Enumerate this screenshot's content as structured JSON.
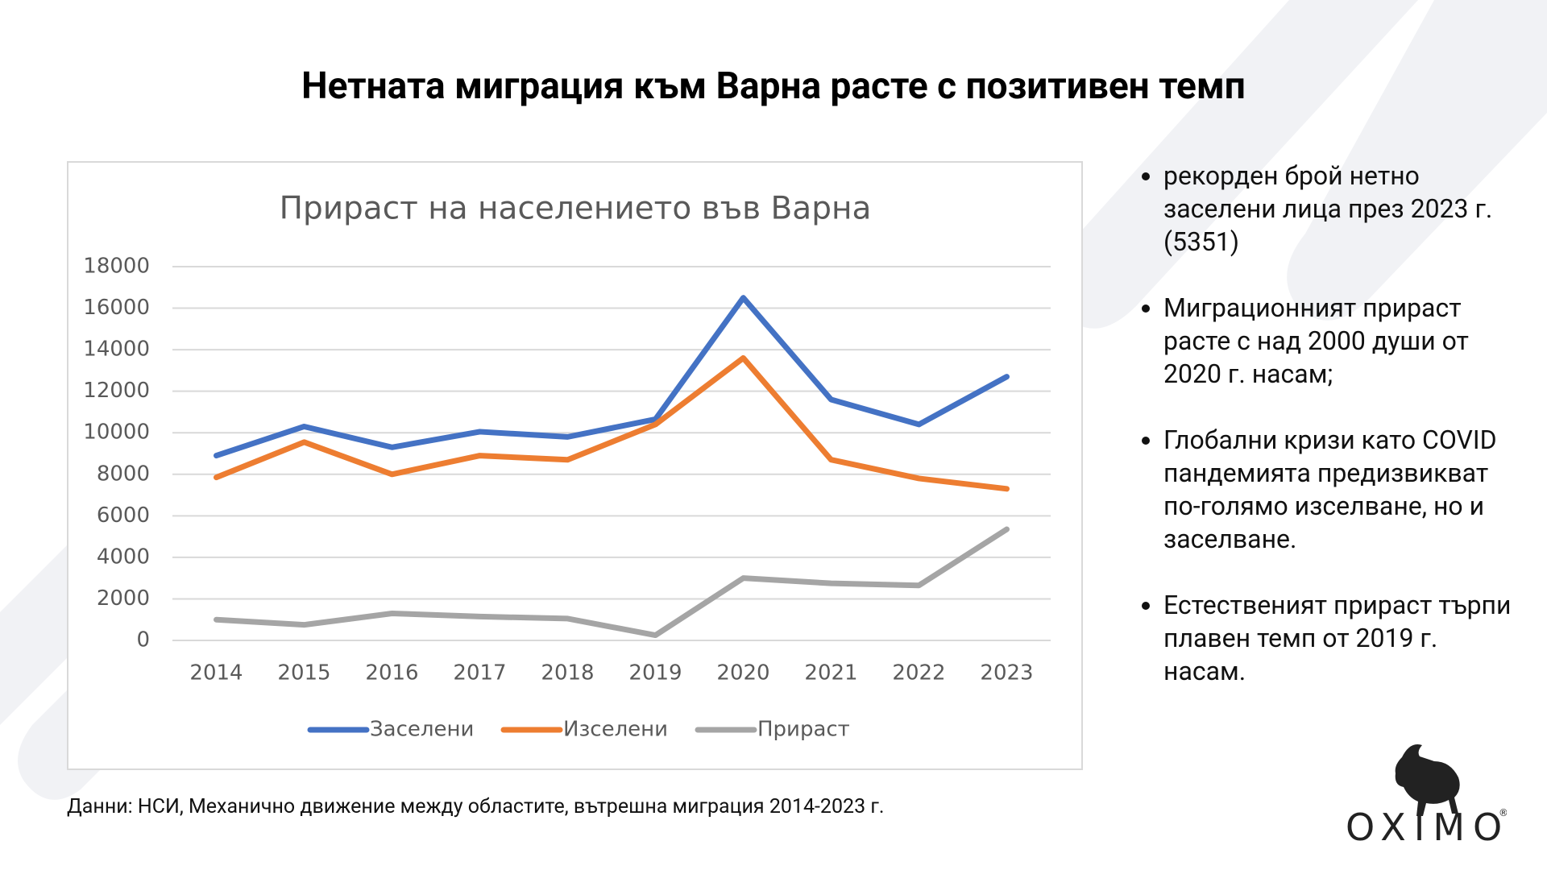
{
  "slide_title": "Нетната миграция към Варна расте с позитивен темп",
  "bullets": [
    "рекорден брой нетно заселени лица през 2023 г. (5351)",
    "Миграционният прираст расте с над 2000 души от 2020 г. насам;",
    "Глобални кризи като COVID пандемията предизвикват по-голямо изселване, но и заселване.",
    "Естественият прираст търпи плавен темп от 2019 г. насам."
  ],
  "source": "Данни: НСИ, Механично движение между областите, вътрешна миграция 2014-2023 г.",
  "logo": "OXIMO",
  "logo_registered": "®",
  "chart_data": {
    "type": "line",
    "title": "Прираст на населението във Варна",
    "categories": [
      "2014",
      "2015",
      "2016",
      "2017",
      "2018",
      "2019",
      "2020",
      "2021",
      "2022",
      "2023"
    ],
    "series": [
      {
        "name": "Заселени",
        "color": "#4472c4",
        "values": [
          8900,
          10300,
          9300,
          10050,
          9800,
          10650,
          16500,
          11600,
          10400,
          12700
        ]
      },
      {
        "name": "Изселени",
        "color": "#ed7d31",
        "values": [
          7850,
          9550,
          8000,
          8900,
          8700,
          10400,
          13600,
          8700,
          7800,
          7300
        ]
      },
      {
        "name": "Прираст",
        "color": "#a5a5a5",
        "values": [
          1000,
          750,
          1300,
          1150,
          1050,
          250,
          3000,
          2750,
          2650,
          5351
        ]
      }
    ],
    "ylim": [
      0,
      18000
    ],
    "yticks": [
      0,
      2000,
      4000,
      6000,
      8000,
      10000,
      12000,
      14000,
      16000,
      18000
    ],
    "grid": true,
    "legend": "bottom"
  }
}
